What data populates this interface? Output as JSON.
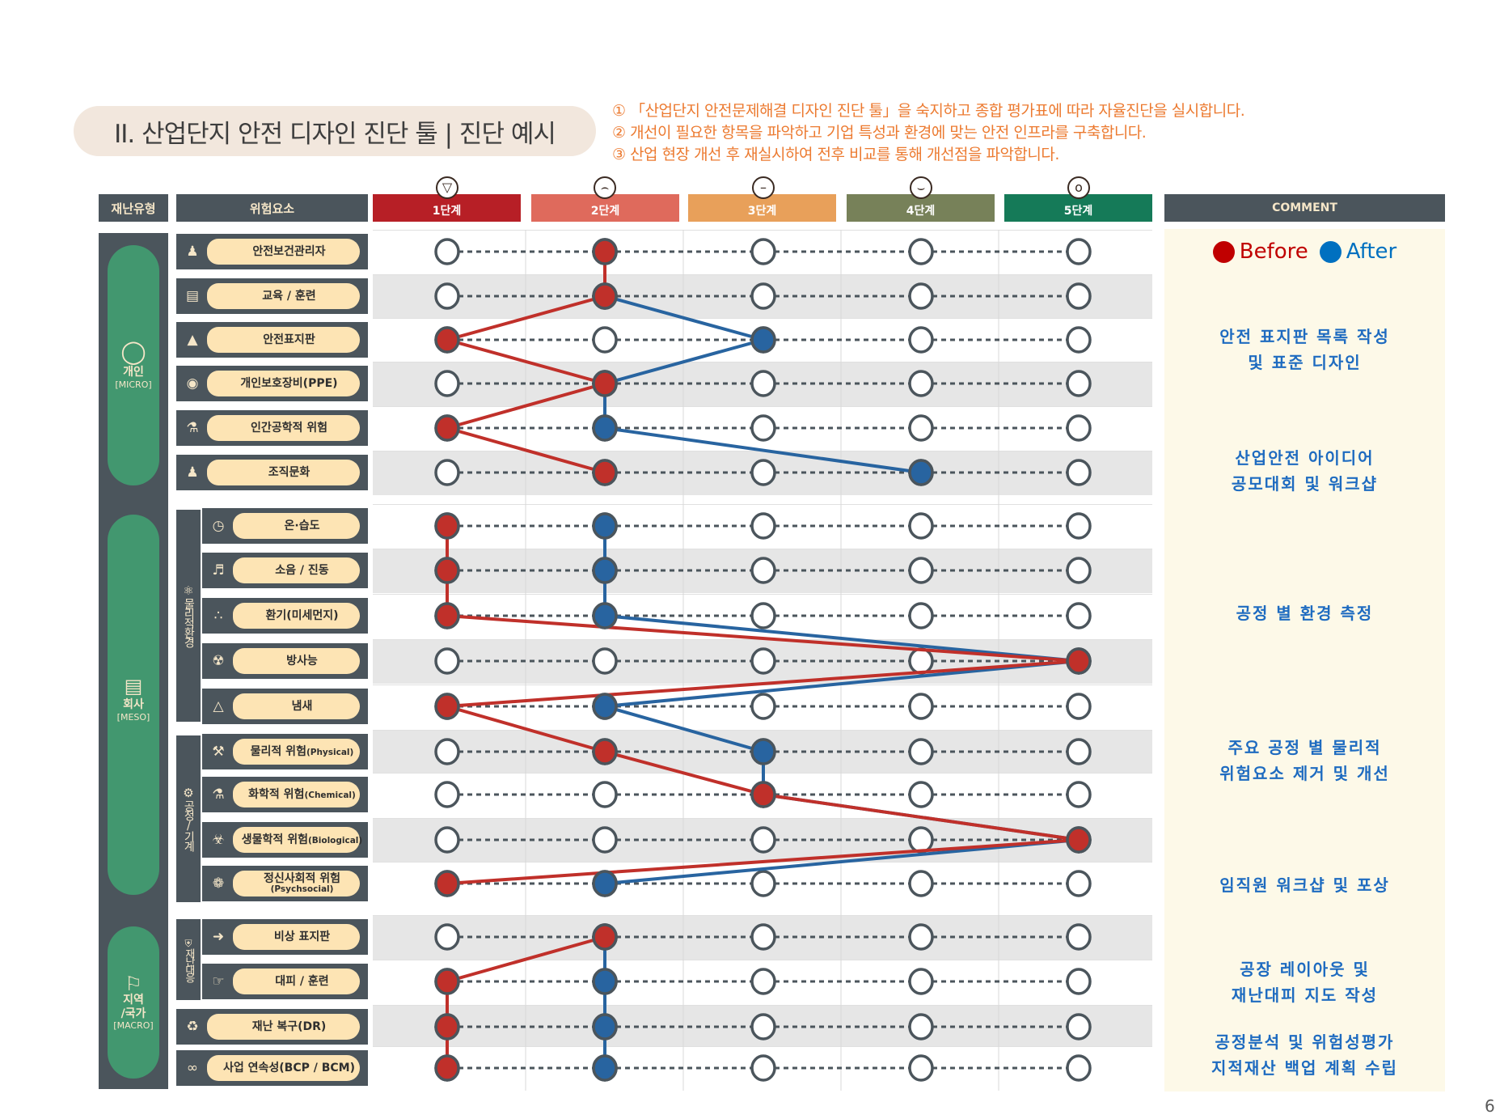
{
  "header": {
    "title": "II. 산업단지 안전 디자인 진단 툴  |  진단 예시",
    "instructions": [
      "① 「산업단지 안전문제해결 디자인 진단 툴」을 숙지하고 종합 평가표에 따라 자율진단을 실시합니다.",
      "② 개선이 필요한 항목을 파악하고 기업 특성과 환경에 맞는 안전 인프라를 구축합니다.",
      "③ 산업 현장 개선 후 재실시하여 전후 비교를 통해 개선점을 파악합니다."
    ]
  },
  "table_headers": {
    "disaster_type": "재난유형",
    "risk_factor": "위험요소",
    "comment": "COMMENT"
  },
  "stages": [
    {
      "label": "1단계",
      "color": "#b71f26",
      "face": "angry-face-icon"
    },
    {
      "label": "2단계",
      "color": "#df6a5c",
      "face": "sad-face-icon"
    },
    {
      "label": "3단계",
      "color": "#e8a05a",
      "face": "neutral-face-icon"
    },
    {
      "label": "4단계",
      "color": "#778159",
      "face": "smile-face-icon"
    },
    {
      "label": "5단계",
      "color": "#157a58",
      "face": "happy-face-icon"
    }
  ],
  "categories": [
    {
      "name": "개인",
      "sub": "[MICRO]",
      "icon": "person-icon"
    },
    {
      "name": "회사",
      "sub": "[MESO]",
      "icon": "factory-icon"
    },
    {
      "name": "지역\n/국가",
      "sub": "[MACRO]",
      "icon": "flag-icon"
    }
  ],
  "subgroups": [
    {
      "name": "물리적환경",
      "icon": "atom-icon"
    },
    {
      "name": "공정/기계",
      "icon": "gear-icon"
    },
    {
      "name": "재난대응",
      "icon": "shield-icon"
    }
  ],
  "items": [
    {
      "label": "안전보건관리자",
      "icon": "worker-icon"
    },
    {
      "label": "교육 / 훈련",
      "icon": "book-icon"
    },
    {
      "label": "안전표지판",
      "icon": "warning-sign-icon"
    },
    {
      "label": "개인보호장비(PPE)",
      "icon": "helmet-icon"
    },
    {
      "label": "인간공학적 위험",
      "icon": "ergonomic-icon"
    },
    {
      "label": "조직문화",
      "icon": "team-icon"
    },
    {
      "label": "온·습도",
      "icon": "gauge-icon"
    },
    {
      "label": "소음 / 진동",
      "icon": "speaker-icon"
    },
    {
      "label": "환기(미세먼지)",
      "icon": "dust-icon"
    },
    {
      "label": "방사능",
      "icon": "radiation-icon"
    },
    {
      "label": "냄새",
      "icon": "nose-icon"
    },
    {
      "label": "물리적 위험",
      "en": "(Physical)",
      "icon": "crane-icon"
    },
    {
      "label": "화학적 위험",
      "en": "(Chemical)",
      "icon": "chemical-icon"
    },
    {
      "label": "생물학적 위험",
      "en": "(Biological)",
      "icon": "biohazard-icon"
    },
    {
      "label": "정신사회적 위험",
      "en2": "(Psychsocial)",
      "icon": "brain-icon"
    },
    {
      "label": "비상 표지판",
      "icon": "exit-icon"
    },
    {
      "label": "대피 / 훈련",
      "icon": "running-icon"
    },
    {
      "label": "재난 복구(DR)",
      "icon": "recovery-icon"
    },
    {
      "label": "사업 연속성(BCP / BCM)",
      "icon": "infinity-icon"
    }
  ],
  "legend": {
    "before": "Before",
    "after": "After",
    "before_color": "#c00000",
    "after_color": "#0070c0"
  },
  "comments": [
    "안전 표지판 목록 작성\n및 표준 디자인",
    "산업안전 아이디어\n공모대회 및 워크샵",
    "공정 별 환경 측정",
    "주요 공정 별 물리적\n위험요소 제거 및 개선",
    "임직원 워크샵 및 포상",
    "공장 레이아웃 및\n재난대피 지도 작성",
    "공정분석 및 위험성평가\n지적재산 백업 계획 수립"
  ],
  "chart_data": {
    "type": "line",
    "title": "",
    "x": [
      "1단계",
      "2단계",
      "3단계",
      "4단계",
      "5단계"
    ],
    "categories": [
      "안전보건관리자",
      "교육 / 훈련",
      "안전표지판",
      "개인보호장비(PPE)",
      "인간공학적 위험",
      "조직문화",
      "온·습도",
      "소음 / 진동",
      "환기(미세먼지)",
      "방사능",
      "냄새",
      "물리적 위험(Physical)",
      "화학적 위험(Chemical)",
      "생물학적 위험(Biological)",
      "정신사회적 위험(Psychsocial)",
      "비상 표지판",
      "대피 / 훈련",
      "재난 복구(DR)",
      "사업 연속성(BCP / BCM)"
    ],
    "series": [
      {
        "name": "Before",
        "color": "#c0302a",
        "values": [
          2,
          2,
          1,
          2,
          1,
          2,
          1,
          1,
          1,
          5,
          1,
          2,
          3,
          5,
          1,
          2,
          1,
          1,
          1
        ]
      },
      {
        "name": "After",
        "color": "#2864a0",
        "values": [
          2,
          2,
          3,
          2,
          2,
          4,
          2,
          2,
          2,
          5,
          2,
          3,
          3,
          5,
          2,
          2,
          2,
          2,
          2
        ]
      }
    ],
    "segments": [
      [
        0,
        6
      ],
      [
        6,
        15
      ],
      [
        15,
        19
      ]
    ],
    "xlim": [
      1,
      5
    ],
    "grid": true
  },
  "page_number": "6"
}
